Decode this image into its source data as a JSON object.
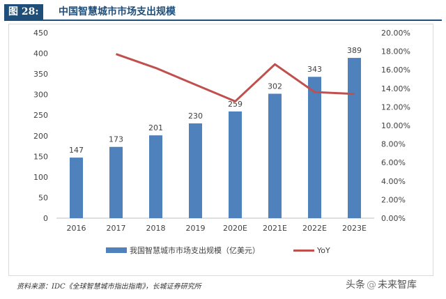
{
  "header": {
    "figure_label": "图 28:",
    "title": "中国智慧城市市场支出规模"
  },
  "chart_data": {
    "type": "bar",
    "categories": [
      "2016",
      "2017",
      "2018",
      "2019",
      "2020E",
      "2021E",
      "2022E",
      "2023E"
    ],
    "series": [
      {
        "name": "我国智慧城市市场支出规模（亿美元）",
        "type": "bar",
        "axis": "left",
        "color": "#4f81bd",
        "values": [
          147,
          173,
          201,
          230,
          259,
          302,
          343,
          389
        ]
      },
      {
        "name": "YoY",
        "type": "line",
        "axis": "right",
        "color": "#c0504d",
        "values": [
          null,
          17.7,
          16.2,
          14.4,
          12.6,
          16.6,
          13.6,
          13.4
        ]
      }
    ],
    "y_left": {
      "min": 0,
      "max": 450,
      "step": 50,
      "ticks": [
        "0",
        "50",
        "100",
        "150",
        "200",
        "250",
        "300",
        "350",
        "400",
        "450"
      ]
    },
    "y_right": {
      "min": 0,
      "max": 20,
      "step": 2,
      "ticks": [
        "0.00%",
        "2.00%",
        "4.00%",
        "6.00%",
        "8.00%",
        "10.00%",
        "12.00%",
        "14.00%",
        "16.00%",
        "18.00%",
        "20.00%"
      ]
    },
    "data_labels": [
      "147",
      "173",
      "201",
      "230",
      "259",
      "302",
      "343",
      "389"
    ],
    "legend_position": "bottom",
    "grid": false
  },
  "legend": {
    "bar_label": "我国智慧城市市场支出规模（亿美元）",
    "line_label": "YoY"
  },
  "footer": {
    "source": "资料来源：IDC《全球智慧城市指出指南》，长城证券研究所",
    "watermark_left": "头条",
    "watermark_sep": "@",
    "watermark_right": "未来智库"
  }
}
